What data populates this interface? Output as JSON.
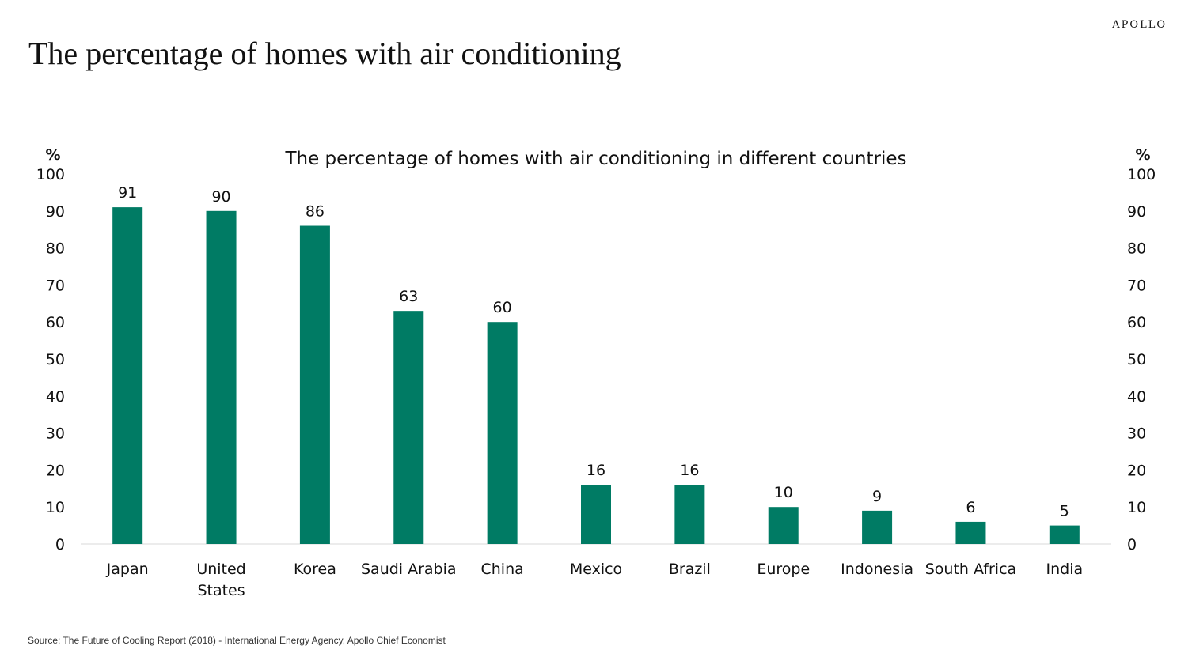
{
  "header": {
    "brand": "APOLLO",
    "title": "The percentage of homes with air conditioning"
  },
  "chart_data": {
    "type": "bar",
    "title": "The percentage of homes with air conditioning in different countries",
    "categories": [
      "Japan",
      "United States",
      "Korea",
      "Saudi Arabia",
      "China",
      "Mexico",
      "Brazil",
      "Europe",
      "Indonesia",
      "South Africa",
      "India"
    ],
    "category_lines": [
      [
        "Japan"
      ],
      [
        "United",
        "States"
      ],
      [
        "Korea"
      ],
      [
        "Saudi Arabia"
      ],
      [
        "China"
      ],
      [
        "Mexico"
      ],
      [
        "Brazil"
      ],
      [
        "Europe"
      ],
      [
        "Indonesia"
      ],
      [
        "South Africa"
      ],
      [
        "India"
      ]
    ],
    "values": [
      91,
      90,
      86,
      63,
      60,
      16,
      16,
      10,
      9,
      6,
      5
    ],
    "ylabel_left": "%",
    "ylabel_right": "%",
    "ylim": [
      0,
      100
    ],
    "yticks": [
      0,
      10,
      20,
      30,
      40,
      50,
      60,
      70,
      80,
      90,
      100
    ],
    "grid": false,
    "bar_color": "#007B64"
  },
  "footer": {
    "source": "Source: The Future of Cooling Report (2018) - International Energy Agency, Apollo Chief Economist"
  }
}
